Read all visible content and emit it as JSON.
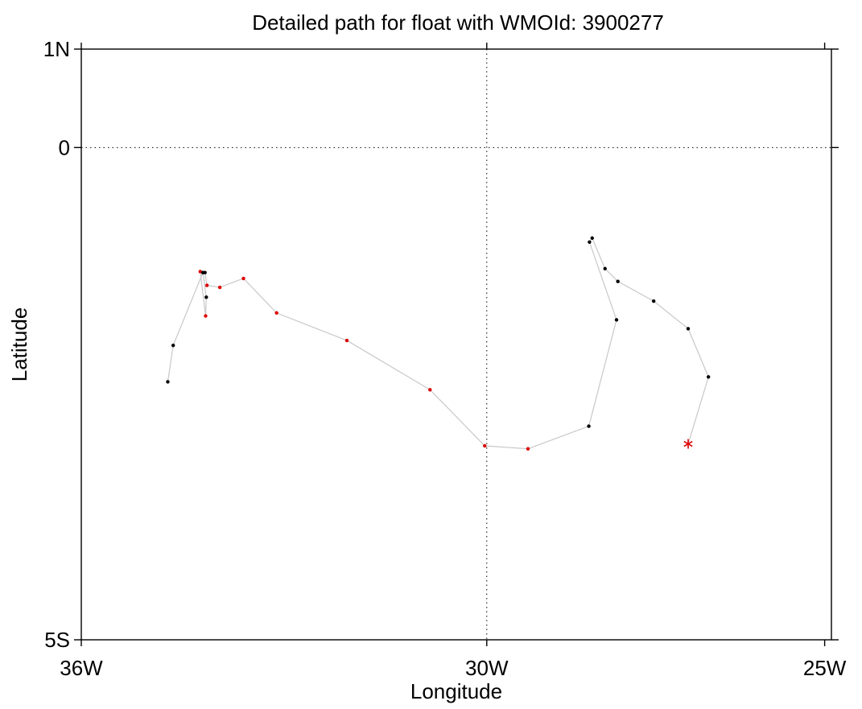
{
  "chart_data": {
    "type": "map",
    "title": "Detailed path for float with WMOId: 3900277",
    "xlabel": "Longitude",
    "ylabel": "Latitude",
    "xlim": [
      -36,
      -24.9
    ],
    "ylim": [
      -5,
      1
    ],
    "x_ticks": [
      {
        "value": -36,
        "label": "36W"
      },
      {
        "value": -30,
        "label": "30W"
      },
      {
        "value": -25,
        "label": "25W"
      }
    ],
    "y_ticks": [
      {
        "value": 1,
        "label": "1N"
      },
      {
        "value": 0,
        "label": "0"
      },
      {
        "value": -5,
        "label": "5S"
      }
    ],
    "grid": {
      "x": [
        -30
      ],
      "y": [
        0
      ]
    },
    "colors": {
      "track": "#c8c8c8",
      "black_point": "#000000",
      "red_point": "#dd0000",
      "start_marker": "#dd0000"
    },
    "path": [
      {
        "lon": -27.02,
        "lat": -3.01,
        "color": "red",
        "marker": "asterisk"
      },
      {
        "lon": -26.72,
        "lat": -2.33,
        "color": "black"
      },
      {
        "lon": -27.02,
        "lat": -1.84,
        "color": "black"
      },
      {
        "lon": -27.53,
        "lat": -1.56,
        "color": "black"
      },
      {
        "lon": -28.06,
        "lat": -1.36,
        "color": "black"
      },
      {
        "lon": -28.25,
        "lat": -1.23,
        "color": "black"
      },
      {
        "lon": -28.44,
        "lat": -0.92,
        "color": "black"
      },
      {
        "lon": -28.48,
        "lat": -0.96,
        "color": "black"
      },
      {
        "lon": -28.08,
        "lat": -1.75,
        "color": "black"
      },
      {
        "lon": -28.49,
        "lat": -2.83,
        "color": "black"
      },
      {
        "lon": -29.39,
        "lat": -3.06,
        "color": "red"
      },
      {
        "lon": -30.03,
        "lat": -3.03,
        "color": "red"
      },
      {
        "lon": -30.84,
        "lat": -2.46,
        "color": "red"
      },
      {
        "lon": -32.07,
        "lat": -1.96,
        "color": "red"
      },
      {
        "lon": -33.11,
        "lat": -1.68,
        "color": "red"
      },
      {
        "lon": -33.6,
        "lat": -1.33,
        "color": "red"
      },
      {
        "lon": -33.95,
        "lat": -1.42,
        "color": "red"
      },
      {
        "lon": -34.14,
        "lat": -1.4,
        "color": "red"
      },
      {
        "lon": -34.17,
        "lat": -1.27,
        "color": "black"
      },
      {
        "lon": -34.24,
        "lat": -1.26,
        "color": "red"
      },
      {
        "lon": -34.16,
        "lat": -1.71,
        "color": "red"
      },
      {
        "lon": -34.15,
        "lat": -1.52,
        "color": "black"
      },
      {
        "lon": -34.2,
        "lat": -1.27,
        "color": "black"
      },
      {
        "lon": -34.64,
        "lat": -2.01,
        "color": "black"
      },
      {
        "lon": -34.72,
        "lat": -2.38,
        "color": "black"
      }
    ]
  }
}
